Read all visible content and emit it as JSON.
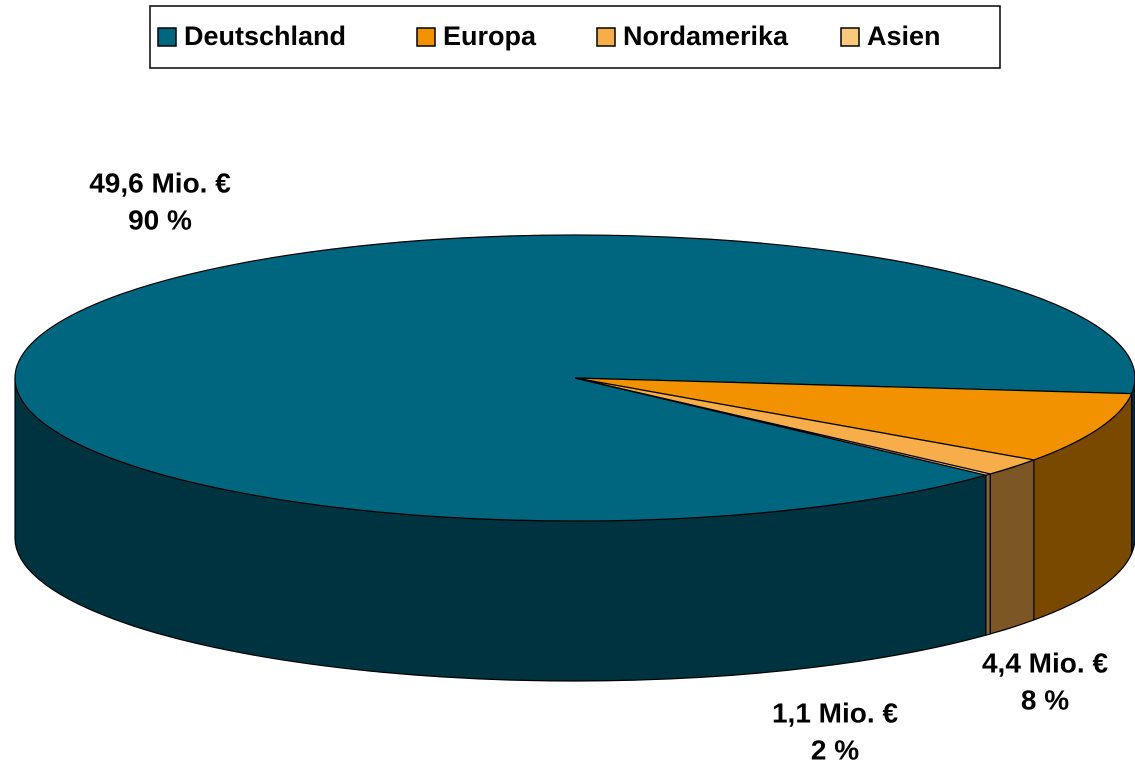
{
  "chart_data": {
    "type": "pie3d",
    "categories": [
      "Deutschland",
      "Europa",
      "Nordamerika",
      "Asien"
    ],
    "values": [
      49.6,
      4.4,
      1.1,
      0.1
    ],
    "value_labels": [
      "49,6 Mio. €",
      "4,4 Mio. €",
      "1,1 Mio. €",
      null
    ],
    "percent_labels": [
      "90 %",
      "8 %",
      "2 %",
      null
    ],
    "colors": [
      "#006680",
      "#f39200",
      "#f7ae4a",
      "#fbc97c"
    ],
    "legend": "top"
  }
}
